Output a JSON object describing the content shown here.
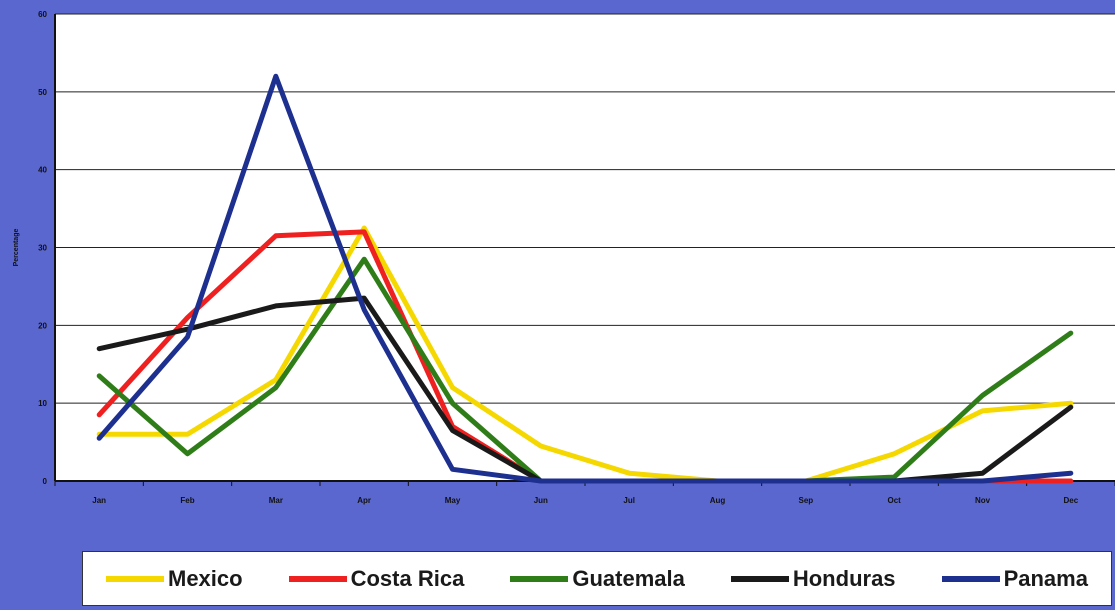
{
  "chart_data": {
    "type": "line",
    "ylabel": "Percentage",
    "xlabel": "",
    "ylim": [
      0,
      60
    ],
    "yticks": [
      0,
      10,
      20,
      30,
      40,
      50,
      60
    ],
    "categories": [
      "Jan",
      "Feb",
      "Mar",
      "Apr",
      "May",
      "Jun",
      "Jul",
      "Aug",
      "Sep",
      "Oct",
      "Nov",
      "Dec"
    ],
    "grid": true,
    "legend_position": "bottom",
    "series": [
      {
        "name": "Mexico",
        "color": "#f5d800",
        "values": [
          6,
          6,
          13,
          32.5,
          12,
          4.5,
          1,
          0,
          0,
          3.5,
          9,
          10
        ]
      },
      {
        "name": "Costa Rica",
        "color": "#ef2020",
        "values": [
          8.5,
          21,
          31.5,
          32,
          7,
          0,
          0,
          0,
          0,
          0,
          0,
          0
        ]
      },
      {
        "name": "Guatemala",
        "color": "#2f7d18",
        "values": [
          13.5,
          3.5,
          12,
          28.5,
          10,
          0,
          0,
          0,
          0,
          0.5,
          11,
          19
        ]
      },
      {
        "name": "Honduras",
        "color": "#1a1a1a",
        "values": [
          17,
          19.5,
          22.5,
          23.5,
          6.5,
          0,
          0,
          0,
          0,
          0,
          1,
          9.5
        ]
      },
      {
        "name": "Panama",
        "color": "#1d2f8f",
        "values": [
          5.5,
          18.5,
          52,
          22,
          1.5,
          0,
          0,
          0,
          0,
          0,
          0,
          1
        ]
      }
    ]
  }
}
